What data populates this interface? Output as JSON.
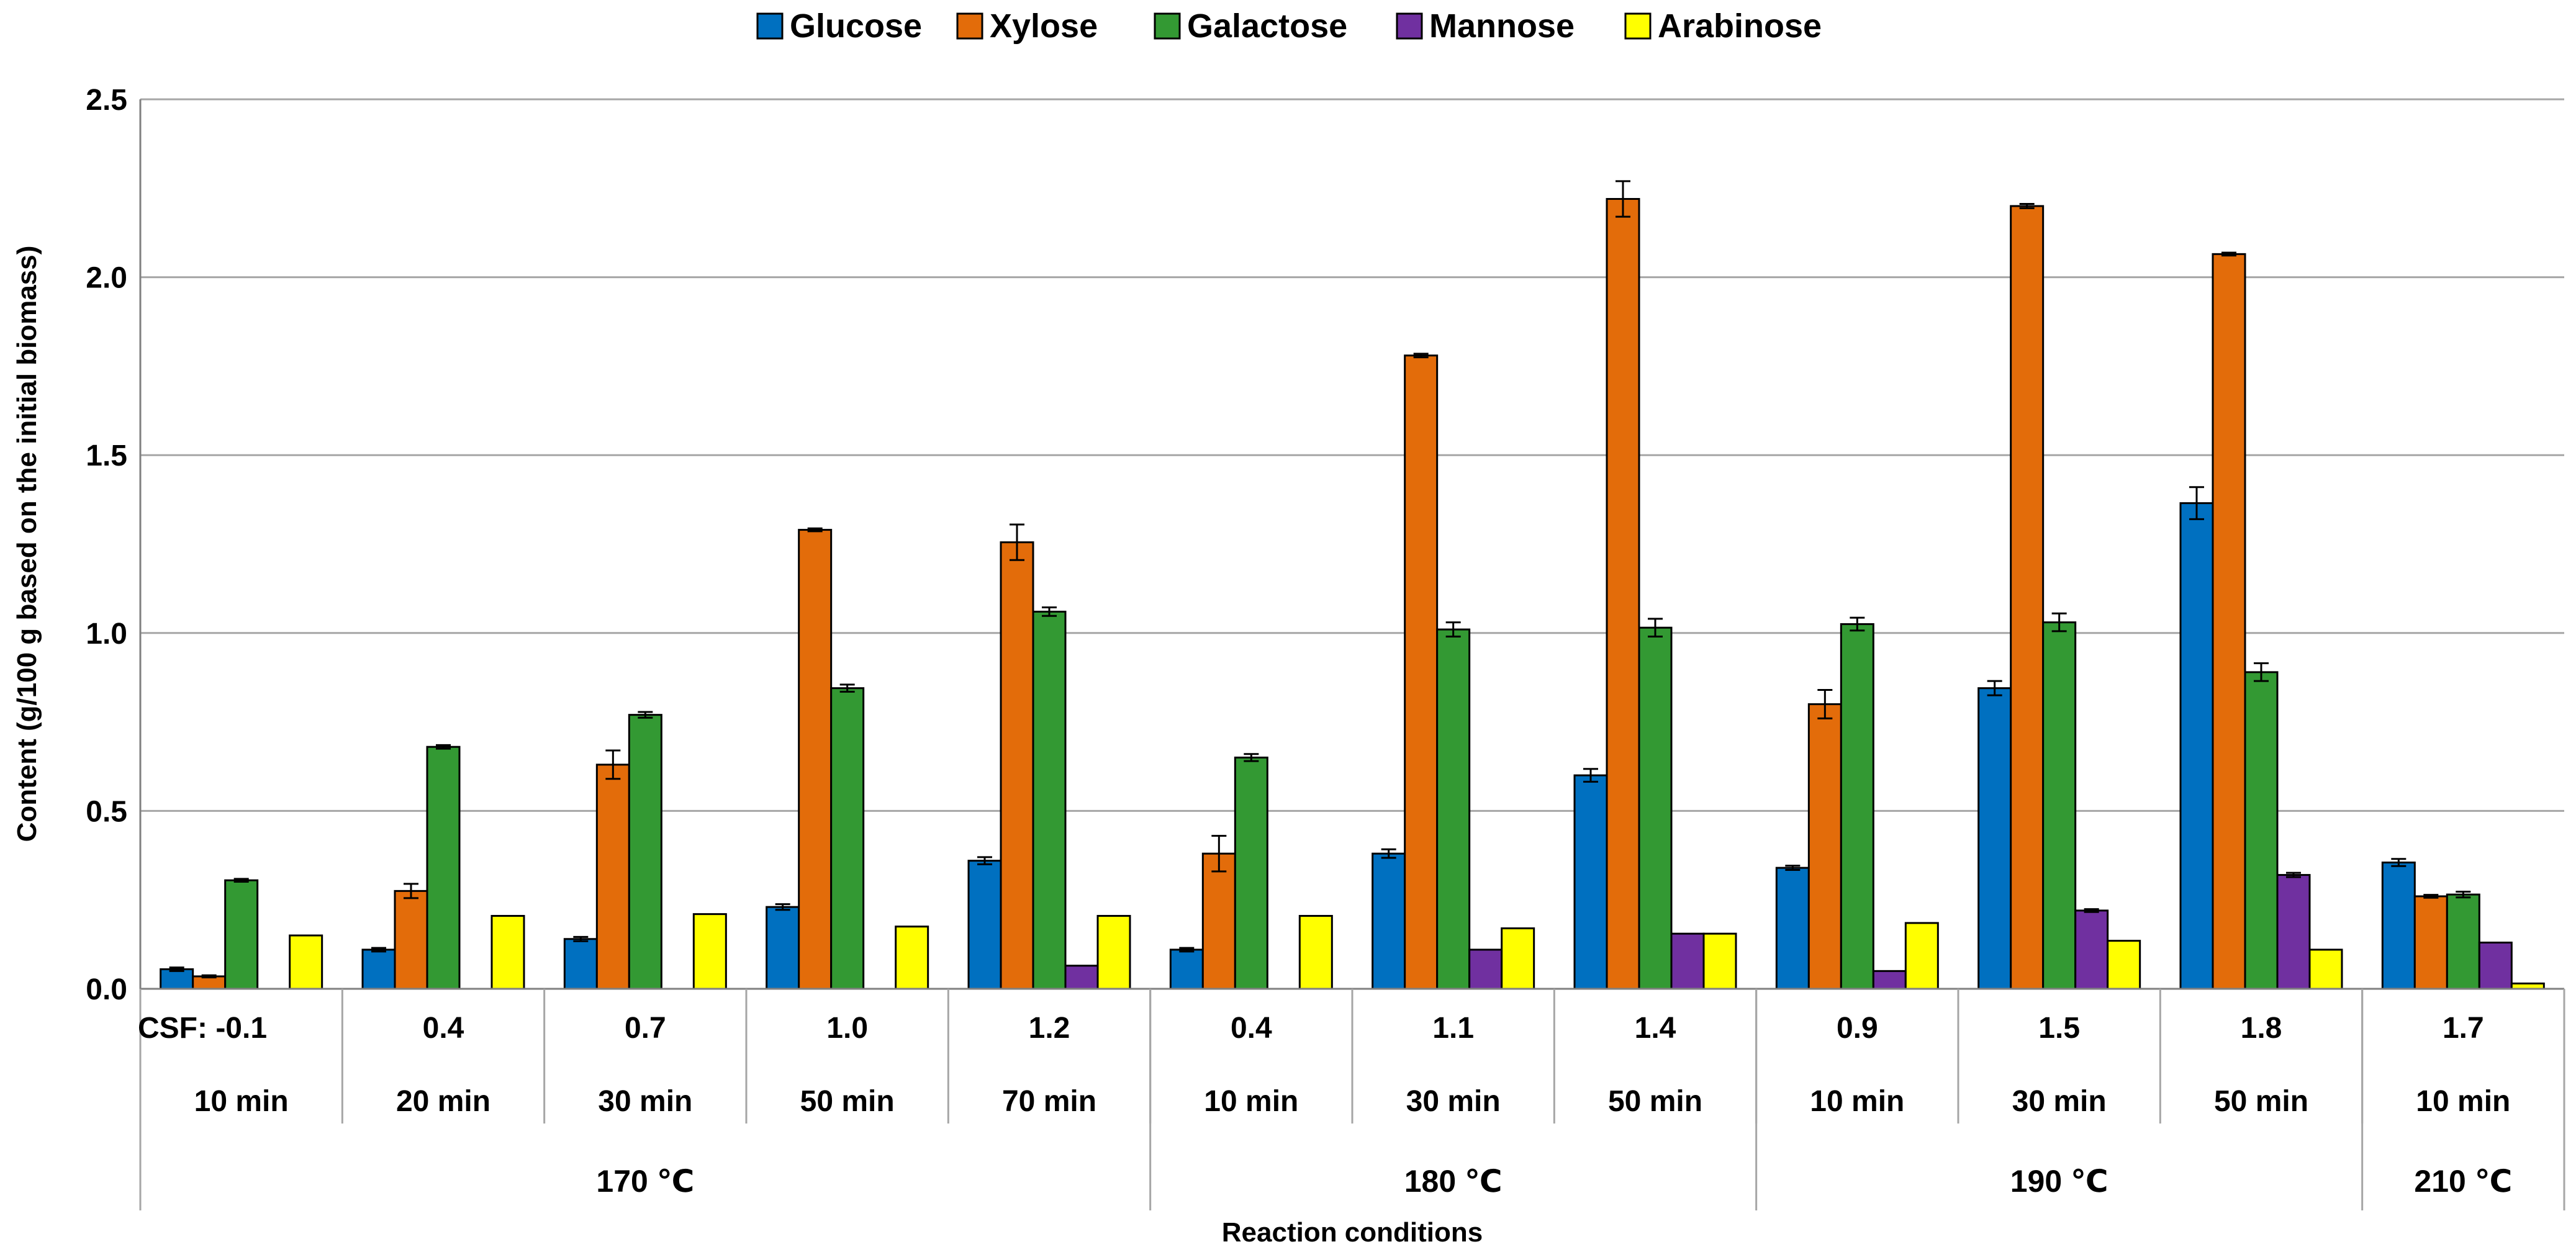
{
  "chart_data": {
    "type": "bar",
    "xlabel": "Reaction conditions",
    "ylabel": "Content (g/100 g based on the initial biomass)",
    "ylim": [
      0,
      2.5
    ],
    "yticks": [
      "0.0",
      "0.5",
      "1.0",
      "1.5",
      "2.0",
      "2.5"
    ],
    "grid": true,
    "legend_position": "top",
    "categories": [
      {
        "csf": "CSF: -0.1",
        "time": "10 min"
      },
      {
        "csf": "0.4",
        "time": "20 min"
      },
      {
        "csf": "0.7",
        "time": "30 min"
      },
      {
        "csf": "1.0",
        "time": "50 min"
      },
      {
        "csf": "1.2",
        "time": "70 min"
      },
      {
        "csf": "0.4",
        "time": "10 min"
      },
      {
        "csf": "1.1",
        "time": "30 min"
      },
      {
        "csf": "1.4",
        "time": "50 min"
      },
      {
        "csf": "0.9",
        "time": "10 min"
      },
      {
        "csf": "1.5",
        "time": "30 min"
      },
      {
        "csf": "1.8",
        "time": "50 min"
      },
      {
        "csf": "1.7",
        "time": "10 min"
      }
    ],
    "groups": [
      {
        "label": "170 ℃",
        "start": 0,
        "end": 4
      },
      {
        "label": "180 ℃",
        "start": 5,
        "end": 7
      },
      {
        "label": "190 ℃",
        "start": 8,
        "end": 10
      },
      {
        "label": "210 ℃",
        "start": 11,
        "end": 11
      }
    ],
    "series": [
      {
        "name": "Glucose",
        "color": "#0070C0",
        "values": [
          0.055,
          0.11,
          0.14,
          0.23,
          0.36,
          0.11,
          0.38,
          0.6,
          0.34,
          0.845,
          1.365,
          0.355
        ],
        "errors": [
          0.005,
          0.005,
          0.006,
          0.008,
          0.01,
          0.005,
          0.012,
          0.018,
          0.006,
          0.02,
          0.045,
          0.01
        ]
      },
      {
        "name": "Xylose",
        "color": "#E36C0A",
        "values": [
          0.035,
          0.275,
          0.63,
          1.29,
          1.255,
          0.38,
          1.78,
          2.22,
          0.8,
          2.2,
          2.065,
          0.26
        ],
        "errors": [
          0.003,
          0.02,
          0.04,
          0.004,
          0.05,
          0.05,
          0.005,
          0.05,
          0.04,
          0.006,
          0.004,
          0.004
        ]
      },
      {
        "name": "Galactose",
        "color": "#339933",
        "values": [
          0.305,
          0.68,
          0.77,
          0.845,
          1.06,
          0.65,
          1.01,
          1.015,
          1.025,
          1.03,
          0.89,
          0.265
        ],
        "errors": [
          0.004,
          0.005,
          0.008,
          0.01,
          0.012,
          0.01,
          0.02,
          0.025,
          0.018,
          0.025,
          0.025,
          0.008
        ]
      },
      {
        "name": "Mannose",
        "color": "#7030A0",
        "values": [
          0,
          0,
          0,
          0,
          0.065,
          0,
          0.11,
          0.155,
          0.05,
          0.22,
          0.32,
          0.13
        ],
        "errors": [
          0,
          0,
          0,
          0,
          0,
          0,
          0,
          0,
          0,
          0.004,
          0.006,
          0
        ]
      },
      {
        "name": "Arabinose",
        "color": "#FFFF00",
        "values": [
          0.15,
          0.205,
          0.21,
          0.175,
          0.205,
          0.205,
          0.17,
          0.155,
          0.185,
          0.135,
          0.11,
          0.015
        ],
        "errors": [
          0,
          0,
          0,
          0,
          0,
          0,
          0,
          0,
          0,
          0,
          0,
          0
        ]
      }
    ]
  }
}
